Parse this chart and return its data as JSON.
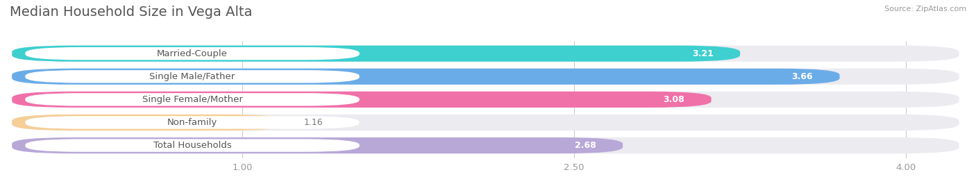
{
  "title": "Median Household Size in Vega Alta",
  "source": "Source: ZipAtlas.com",
  "categories": [
    "Married-Couple",
    "Single Male/Father",
    "Single Female/Mother",
    "Non-family",
    "Total Households"
  ],
  "values": [
    3.21,
    3.66,
    3.08,
    1.16,
    2.68
  ],
  "colors": [
    "#3ecfcf",
    "#6aace8",
    "#f070a8",
    "#f5ce98",
    "#b8a8d8"
  ],
  "xlim_data": [
    0.0,
    4.0
  ],
  "xticks": [
    1.0,
    2.5,
    4.0
  ],
  "xtick_labels": [
    "1.00",
    "2.50",
    "4.00"
  ],
  "bar_height": 0.62,
  "background_color": "#ffffff",
  "bar_background": "#ebebf0",
  "title_fontsize": 14,
  "label_fontsize": 9.5,
  "value_fontsize": 9,
  "source_fontsize": 8
}
